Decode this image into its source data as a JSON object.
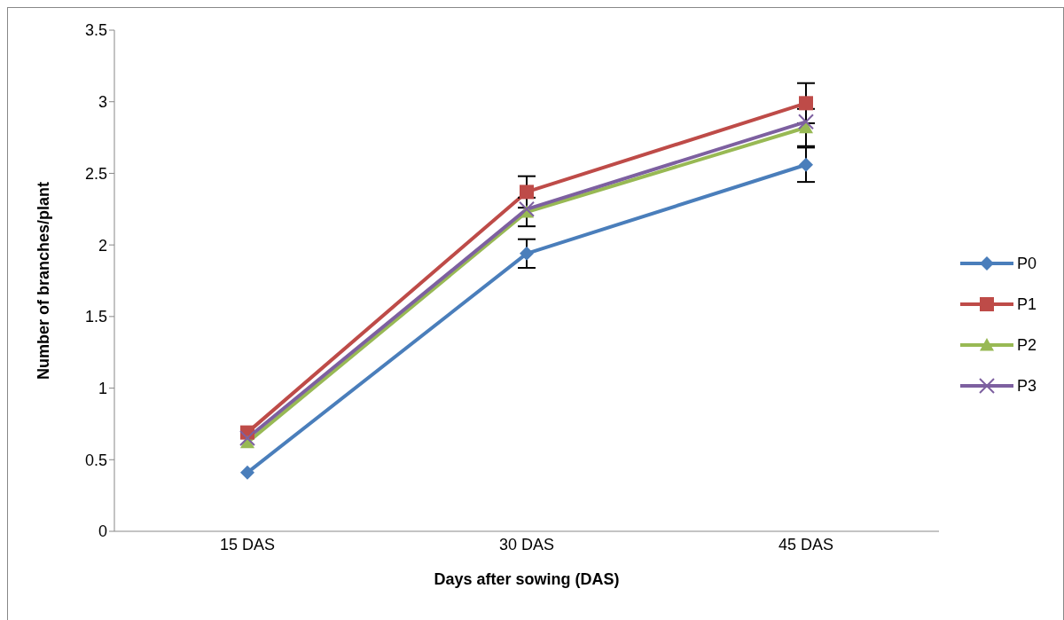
{
  "chart_data": {
    "type": "line",
    "xlabel": "Days after sowing (DAS)",
    "ylabel": "Number of branches/plant",
    "categories": [
      "15 DAS",
      "30 DAS",
      "45 DAS"
    ],
    "series": [
      {
        "name": "P0",
        "color": "#4a7ebb",
        "marker": "diamond",
        "values": [
          0.41,
          1.94,
          2.56
        ],
        "errors": [
          null,
          0.1,
          0.12
        ]
      },
      {
        "name": "P1",
        "color": "#be4b48",
        "marker": "square",
        "values": [
          0.69,
          2.37,
          2.99
        ],
        "errors": [
          null,
          0.11,
          0.14
        ]
      },
      {
        "name": "P2",
        "color": "#98b954",
        "marker": "triangle",
        "values": [
          0.62,
          2.23,
          2.82
        ],
        "errors": [
          null,
          0.1,
          0.13
        ]
      },
      {
        "name": "P3",
        "color": "#7d60a0",
        "marker": "cross",
        "values": [
          0.65,
          2.25,
          2.86
        ]
      }
    ],
    "ylim": [
      0,
      3.5
    ],
    "yticks": [
      0,
      0.5,
      1,
      1.5,
      2,
      2.5,
      3,
      3.5
    ],
    "grid": false,
    "legend": "right"
  }
}
